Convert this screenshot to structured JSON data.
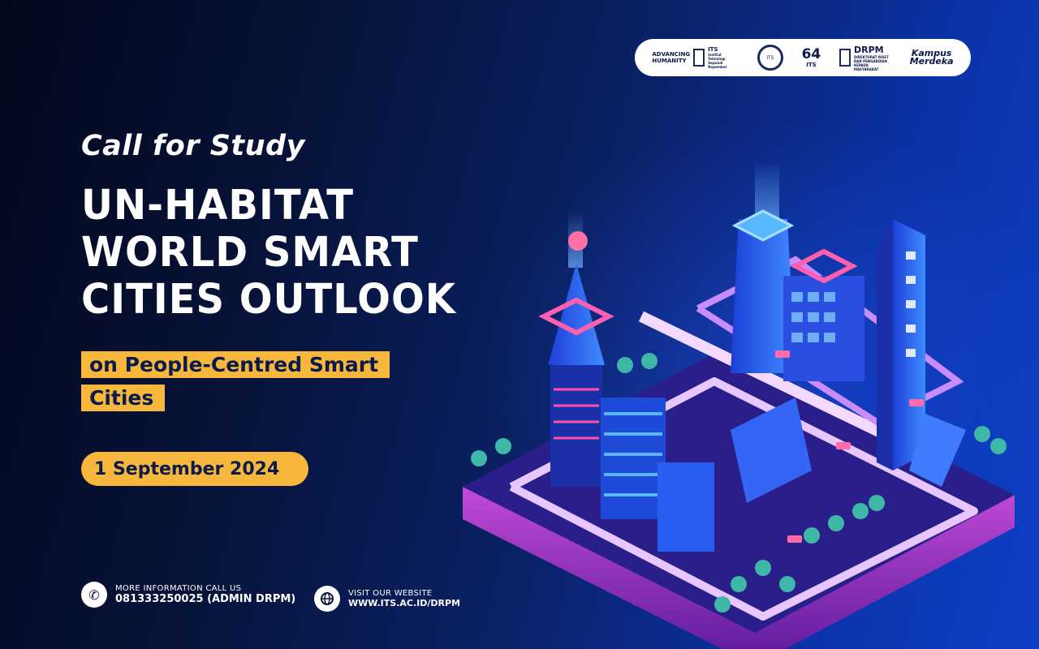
{
  "logos": {
    "advancing_line1": "ADVANCING",
    "advancing_line2": "HUMANITY",
    "its_label": "ITS",
    "its_sub": "Institut Teknologi Sepuluh Nopember",
    "seal_label": "ITS",
    "its64_label": "64",
    "its64_sub": "ITS",
    "drpm_label": "DRPM",
    "drpm_sub": "DIREKTORAT RISET DAN PENGABDIAN KEPADA MASYARAKAT",
    "kampus_line1": "Kampus",
    "kampus_line2": "Merdeka"
  },
  "headline": {
    "call": "Call for Study",
    "title_lines": [
      "UN-HABITAT",
      "WORLD SMART",
      "CITIES OUTLOOK"
    ],
    "subtitle_lines": [
      "on People-Centred Smart",
      "Cities"
    ],
    "date": "1 September 2024"
  },
  "contacts": {
    "phone_label": "MORE INFORMATION CALL US",
    "phone_value": "081333250025 (ADMIN DRPM)",
    "phone_icon": "phone-icon",
    "web_label": "VISIT OUR WEBSITE",
    "web_value": "WWW.ITS.AC.ID/DRPM",
    "web_icon": "globe-icon"
  },
  "colors": {
    "accent": "#f6b73c",
    "navy": "#0a1a4a",
    "city_blue": "#2b6cff",
    "city_pink": "#ff4fa3",
    "city_purple": "#8a2be2"
  }
}
